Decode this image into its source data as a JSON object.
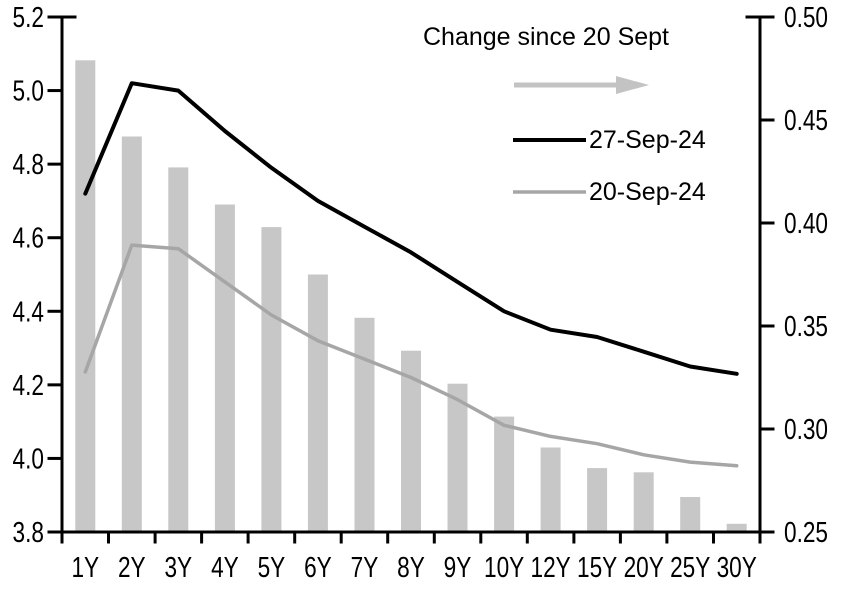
{
  "chart_data": {
    "type": "combo-bar-line",
    "title": "",
    "categories": [
      "1Y",
      "2Y",
      "3Y",
      "4Y",
      "5Y",
      "6Y",
      "7Y",
      "8Y",
      "9Y",
      "10Y",
      "12Y",
      "15Y",
      "20Y",
      "25Y",
      "30Y"
    ],
    "series": [
      {
        "name": "Change since 20 Sept",
        "type": "bar",
        "axis": "right",
        "color": "#c7c7c7",
        "values": [
          0.479,
          0.442,
          0.427,
          0.409,
          0.398,
          0.375,
          0.354,
          0.338,
          0.322,
          0.306,
          0.291,
          0.281,
          0.279,
          0.267,
          0.254
        ]
      },
      {
        "name": "27-Sep-24",
        "type": "line",
        "axis": "left",
        "color": "#000000",
        "values": [
          4.72,
          5.02,
          5.0,
          4.89,
          4.79,
          4.7,
          4.63,
          4.56,
          4.48,
          4.4,
          4.35,
          4.33,
          4.29,
          4.25,
          4.23
        ]
      },
      {
        "name": "20-Sep-24",
        "type": "line",
        "axis": "left",
        "color": "#a6a6a6",
        "values": [
          4.235,
          4.58,
          4.57,
          4.48,
          4.39,
          4.32,
          4.27,
          4.22,
          4.16,
          4.09,
          4.06,
          4.04,
          4.01,
          3.99,
          3.98
        ]
      }
    ],
    "left_axis": {
      "min": 3.8,
      "max": 5.2,
      "step": 0.2,
      "tick_labels": [
        "5.2",
        "5.0",
        "4.8",
        "4.6",
        "4.4",
        "4.2",
        "4.0",
        "3.8"
      ]
    },
    "right_axis": {
      "min": 0.25,
      "max": 0.5,
      "step": 0.05,
      "tick_labels": [
        "0.50",
        "0.45",
        "0.40",
        "0.35",
        "0.30",
        "0.25"
      ]
    },
    "legend": {
      "change_label": "Change since 20 Sept",
      "series1_label": "27-Sep-24",
      "series2_label": "20-Sep-24"
    },
    "legend_position": "top-right-inside",
    "grid": false
  },
  "colors": {
    "axis": "#000000",
    "bar": "#c7c7c7",
    "line_27sep": "#000000",
    "line_20sep": "#a6a6a6",
    "arrow": "#c3c3c3",
    "background": "#ffffff"
  }
}
